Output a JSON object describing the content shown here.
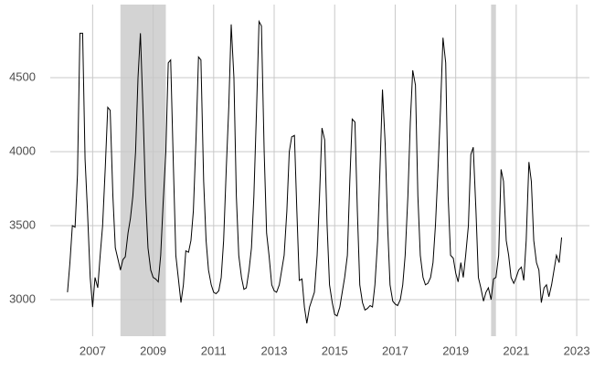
{
  "chart_data": {
    "type": "line",
    "xlim": [
      2005.6,
      2023.42
    ],
    "ylim": [
      2753,
      4994
    ],
    "xticks": [
      2007,
      2009,
      2011,
      2013,
      2015,
      2017,
      2019,
      2021,
      2023
    ],
    "yticks": [
      3000,
      3500,
      4000,
      4500
    ],
    "grid": true,
    "shaded_regions": [
      [
        2007.92,
        2009.42
      ],
      [
        2020.17,
        2020.33
      ]
    ],
    "shade_color": "#d3d3d3",
    "x": [
      2006.17,
      2006.25,
      2006.33,
      2006.42,
      2006.5,
      2006.58,
      2006.67,
      2006.75,
      2006.83,
      2006.92,
      2007.0,
      2007.08,
      2007.17,
      2007.25,
      2007.33,
      2007.42,
      2007.5,
      2007.58,
      2007.67,
      2007.75,
      2007.83,
      2007.92,
      2008.0,
      2008.08,
      2008.17,
      2008.25,
      2008.33,
      2008.42,
      2008.5,
      2008.58,
      2008.67,
      2008.75,
      2008.83,
      2008.92,
      2009.0,
      2009.08,
      2009.17,
      2009.25,
      2009.33,
      2009.42,
      2009.5,
      2009.58,
      2009.67,
      2009.75,
      2009.83,
      2009.92,
      2010.0,
      2010.08,
      2010.17,
      2010.25,
      2010.33,
      2010.42,
      2010.5,
      2010.58,
      2010.67,
      2010.75,
      2010.83,
      2010.92,
      2011.0,
      2011.08,
      2011.17,
      2011.25,
      2011.33,
      2011.42,
      2011.5,
      2011.58,
      2011.67,
      2011.75,
      2011.83,
      2011.92,
      2012.0,
      2012.08,
      2012.17,
      2012.25,
      2012.33,
      2012.42,
      2012.5,
      2012.58,
      2012.67,
      2012.75,
      2012.83,
      2012.92,
      2013.0,
      2013.08,
      2013.17,
      2013.25,
      2013.33,
      2013.42,
      2013.5,
      2013.58,
      2013.67,
      2013.75,
      2013.83,
      2013.92,
      2014.0,
      2014.08,
      2014.17,
      2014.25,
      2014.33,
      2014.42,
      2014.5,
      2014.58,
      2014.67,
      2014.75,
      2014.83,
      2014.92,
      2015.0,
      2015.08,
      2015.17,
      2015.25,
      2015.33,
      2015.42,
      2015.5,
      2015.58,
      2015.67,
      2015.75,
      2015.83,
      2015.92,
      2016.0,
      2016.08,
      2016.17,
      2016.25,
      2016.33,
      2016.42,
      2016.5,
      2016.58,
      2016.67,
      2016.75,
      2016.83,
      2016.92,
      2017.0,
      2017.08,
      2017.17,
      2017.25,
      2017.33,
      2017.42,
      2017.5,
      2017.58,
      2017.67,
      2017.75,
      2017.83,
      2017.92,
      2018.0,
      2018.08,
      2018.17,
      2018.25,
      2018.33,
      2018.42,
      2018.5,
      2018.58,
      2018.67,
      2018.75,
      2018.83,
      2018.92,
      2019.0,
      2019.08,
      2019.17,
      2019.25,
      2019.33,
      2019.42,
      2019.5,
      2019.58,
      2019.67,
      2019.75,
      2019.83,
      2019.92,
      2020.0,
      2020.08,
      2020.17,
      2020.25,
      2020.33,
      2020.42,
      2020.5,
      2020.58,
      2020.67,
      2020.75,
      2020.83,
      2020.92,
      2021.0,
      2021.08,
      2021.17,
      2021.25,
      2021.33,
      2021.42,
      2021.5,
      2021.58,
      2021.67,
      2021.75,
      2021.83,
      2021.92,
      2022.0,
      2022.08,
      2022.17,
      2022.25,
      2022.33,
      2022.42,
      2022.5
    ],
    "series": [
      {
        "color": "#000000",
        "values": [
          3050,
          3250,
          3500,
          3490,
          3850,
          4800,
          4800,
          3950,
          3600,
          3150,
          2950,
          3150,
          3080,
          3300,
          3500,
          3900,
          4300,
          4280,
          3700,
          3350,
          3280,
          3200,
          3270,
          3290,
          3450,
          3550,
          3700,
          4000,
          4500,
          4800,
          4250,
          3700,
          3350,
          3200,
          3150,
          3140,
          3120,
          3300,
          3650,
          4000,
          4600,
          4620,
          3900,
          3300,
          3150,
          2980,
          3100,
          3330,
          3320,
          3400,
          3600,
          4100,
          4640,
          4620,
          3800,
          3400,
          3200,
          3100,
          3050,
          3040,
          3060,
          3150,
          3400,
          3900,
          4300,
          4860,
          4500,
          3700,
          3300,
          3150,
          3070,
          3080,
          3200,
          3350,
          3700,
          4300,
          4880,
          4850,
          4000,
          3450,
          3300,
          3100,
          3060,
          3050,
          3100,
          3200,
          3300,
          3600,
          4000,
          4100,
          4110,
          3600,
          3130,
          3140,
          2950,
          2840,
          2950,
          3000,
          3050,
          3300,
          3700,
          4160,
          4080,
          3500,
          3100,
          2980,
          2900,
          2890,
          2950,
          3050,
          3150,
          3300,
          3800,
          4220,
          4200,
          3600,
          3100,
          2980,
          2930,
          2940,
          2960,
          2950,
          3100,
          3400,
          3900,
          4420,
          4050,
          3500,
          3100,
          2990,
          2970,
          2960,
          3000,
          3100,
          3300,
          3700,
          4200,
          4550,
          4450,
          3700,
          3300,
          3150,
          3100,
          3110,
          3150,
          3250,
          3500,
          3900,
          4300,
          4770,
          4600,
          3700,
          3300,
          3280,
          3180,
          3120,
          3250,
          3150,
          3300,
          3500,
          3980,
          4030,
          3600,
          3150,
          3080,
          2990,
          3050,
          3080,
          3000,
          3140,
          3150,
          3300,
          3880,
          3800,
          3400,
          3300,
          3150,
          3110,
          3150,
          3200,
          3220,
          3130,
          3400,
          3930,
          3800,
          3400,
          3250,
          3200,
          2980,
          3080,
          3100,
          3020,
          3100,
          3200,
          3300,
          3250,
          3420
        ]
      }
    ]
  }
}
